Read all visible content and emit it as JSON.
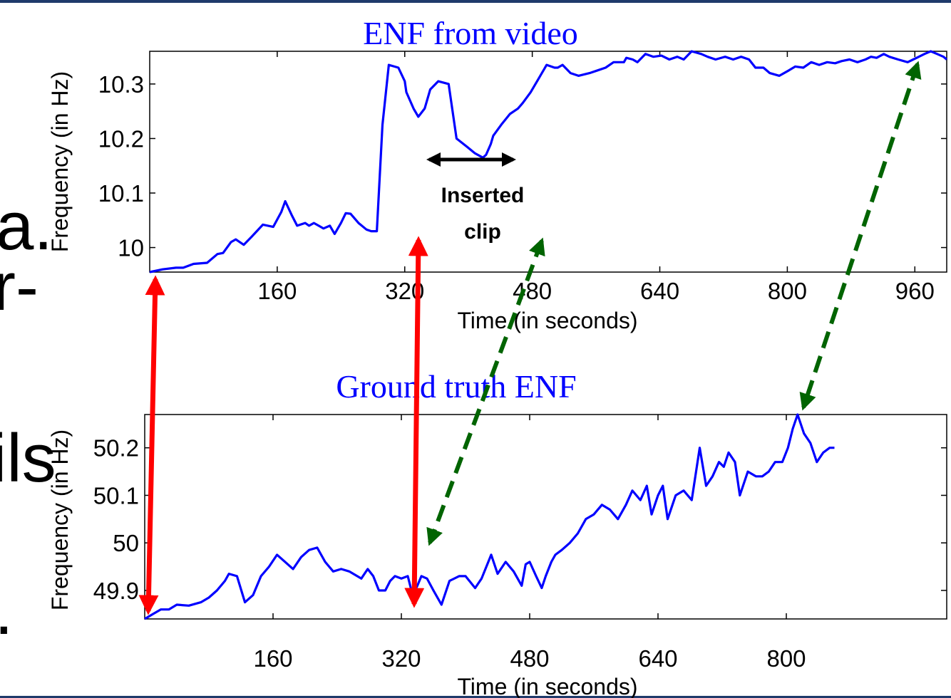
{
  "slide_fragments": [
    "a.",
    "r-",
    "ils",
    "."
  ],
  "colors": {
    "series": "#0000ff",
    "title": "#0000ff",
    "red_arrow": "#ff0000",
    "green_arrow": "#006400",
    "header_bar": "#1f3a6b"
  },
  "chart_data": [
    {
      "type": "line",
      "title": "ENF from video",
      "xlabel": "Time (in seconds)",
      "ylabel": "Frequency (in Hz)",
      "xlim": [
        0,
        1000
      ],
      "ylim": [
        9.955,
        10.36
      ],
      "xticks": [
        160,
        320,
        480,
        640,
        800,
        960
      ],
      "yticks": [
        10,
        10.1,
        10.2,
        10.3
      ],
      "ytick_labels": [
        "10",
        "10.1",
        "10.2",
        "10.3"
      ],
      "grid": false,
      "series": [
        {
          "x": [
            0,
            16,
            33,
            42,
            55,
            72,
            85,
            92,
            102,
            108,
            118,
            128,
            142,
            155,
            165,
            170,
            178,
            185,
            195,
            200,
            206,
            212,
            218,
            226,
            232,
            240,
            246,
            252,
            262,
            272,
            278,
            285,
            292,
            300,
            312,
            320,
            322,
            331,
            337,
            345,
            352,
            362,
            375,
            385,
            398,
            408,
            418,
            422,
            428,
            431,
            441,
            452,
            462,
            468,
            478,
            488,
            498,
            508,
            512,
            518,
            528,
            538,
            552,
            562,
            572,
            582,
            595,
            598,
            606,
            612,
            622,
            632,
            642,
            652,
            662,
            670,
            680,
            692,
            700,
            710,
            722,
            732,
            742,
            752,
            760,
            770,
            778,
            790,
            802,
            810,
            820,
            830,
            840,
            850,
            860,
            868,
            878,
            888,
            898,
            905,
            912,
            921,
            928,
            939,
            951,
            958,
            965,
            972,
            980,
            988,
            996,
            1000
          ],
          "y": [
            9.955,
            9.96,
            9.963,
            9.963,
            9.97,
            9.972,
            9.988,
            9.99,
            10.01,
            10.015,
            10.005,
            10.02,
            10.042,
            10.038,
            10.065,
            10.085,
            10.06,
            10.04,
            10.045,
            10.04,
            10.045,
            10.04,
            10.035,
            10.04,
            10.025,
            10.045,
            10.063,
            10.062,
            10.045,
            10.033,
            10.03,
            10.03,
            10.225,
            10.335,
            10.33,
            10.305,
            10.285,
            10.255,
            10.24,
            10.255,
            10.29,
            10.305,
            10.3,
            10.2,
            10.185,
            10.173,
            10.165,
            10.17,
            10.19,
            10.205,
            10.225,
            10.245,
            10.255,
            10.265,
            10.285,
            10.31,
            10.335,
            10.33,
            10.33,
            10.335,
            10.32,
            10.315,
            10.32,
            10.325,
            10.33,
            10.34,
            10.34,
            10.348,
            10.345,
            10.34,
            10.355,
            10.35,
            10.352,
            10.345,
            10.35,
            10.345,
            10.36,
            10.355,
            10.35,
            10.345,
            10.35,
            10.345,
            10.35,
            10.345,
            10.33,
            10.33,
            10.32,
            10.315,
            10.325,
            10.332,
            10.33,
            10.34,
            10.335,
            10.34,
            10.338,
            10.342,
            10.345,
            10.34,
            10.345,
            10.35,
            10.348,
            10.355,
            10.35,
            10.345,
            10.34,
            10.345,
            10.35,
            10.355,
            10.36,
            10.355,
            10.35,
            10.345
          ]
        }
      ]
    },
    {
      "type": "line",
      "title": "Ground truth ENF",
      "xlabel": "Time (in seconds)",
      "ylabel": "Frequency (in Hz)",
      "xlim": [
        0,
        1000
      ],
      "ylim": [
        49.84,
        50.27
      ],
      "xticks": [
        160,
        320,
        480,
        640,
        800
      ],
      "yticks": [
        49.9,
        50,
        50.1,
        50.2
      ],
      "ytick_labels": [
        "49.9",
        "50",
        "50.1",
        "50.2"
      ],
      "grid": false,
      "series": [
        {
          "x": [
            0,
            10,
            20,
            30,
            40,
            55,
            70,
            80,
            90,
            100,
            105,
            115,
            125,
            135,
            145,
            155,
            165,
            175,
            185,
            195,
            205,
            215,
            225,
            235,
            245,
            255,
            265,
            270,
            278,
            285,
            292,
            300,
            306,
            312,
            320,
            328,
            334,
            340,
            345,
            352,
            360,
            370,
            380,
            392,
            400,
            412,
            420,
            432,
            440,
            450,
            460,
            470,
            475,
            480,
            488,
            495,
            500,
            507,
            512,
            520,
            530,
            540,
            550,
            560,
            570,
            580,
            590,
            600,
            608,
            618,
            626,
            632,
            640,
            646,
            652,
            662,
            672,
            682,
            692,
            700,
            708,
            716,
            722,
            728,
            736,
            742,
            752,
            762,
            770,
            778,
            786,
            795,
            802,
            808,
            814,
            822,
            830,
            838,
            846,
            854,
            860
          ],
          "y": [
            49.84,
            49.85,
            49.86,
            49.86,
            49.87,
            49.868,
            49.875,
            49.885,
            49.9,
            49.92,
            49.935,
            49.93,
            49.875,
            49.89,
            49.93,
            49.95,
            49.975,
            49.96,
            49.945,
            49.97,
            49.985,
            49.99,
            49.96,
            49.94,
            49.945,
            49.94,
            49.93,
            49.925,
            49.945,
            49.93,
            49.9,
            49.9,
            49.92,
            49.93,
            49.925,
            49.93,
            49.89,
            49.91,
            49.93,
            49.925,
            49.9,
            49.87,
            49.92,
            49.93,
            49.93,
            49.905,
            49.925,
            49.975,
            49.935,
            49.96,
            49.94,
            49.91,
            49.955,
            49.96,
            49.93,
            49.905,
            49.93,
            49.96,
            49.975,
            49.985,
            50,
            50.02,
            50.05,
            50.06,
            50.08,
            50.07,
            50.05,
            50.08,
            50.11,
            50.09,
            50.12,
            50.06,
            50.1,
            50.12,
            50.05,
            50.1,
            50.11,
            50.09,
            50.2,
            50.12,
            50.14,
            50.17,
            50.16,
            50.19,
            50.17,
            50.1,
            50.15,
            50.14,
            50.14,
            50.15,
            50.17,
            50.17,
            50.2,
            50.24,
            50.27,
            50.23,
            50.21,
            50.17,
            50.19,
            50.2,
            50.2
          ]
        }
      ]
    }
  ],
  "annotations": {
    "inserted_clip_line1": "Inserted",
    "inserted_clip_line2": "clip"
  }
}
